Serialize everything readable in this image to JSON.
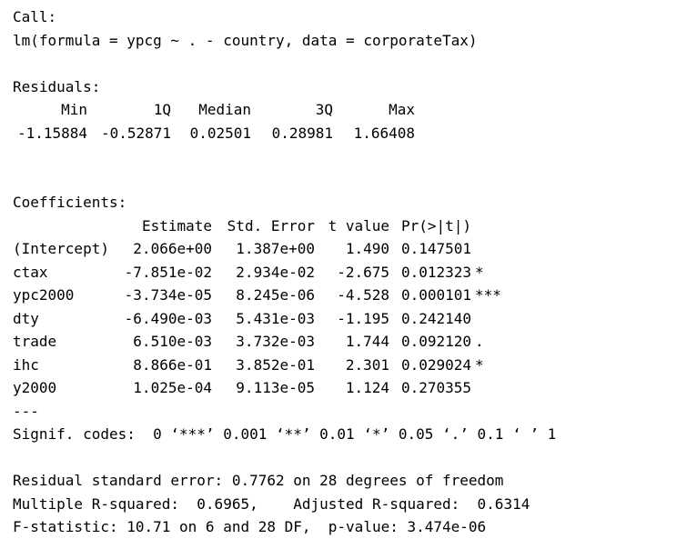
{
  "call": {
    "header": "Call:",
    "formula": "lm(formula = ypcg ~ . - country, data = corporateTax)"
  },
  "residuals": {
    "header": "Residuals:",
    "labels": [
      "Min",
      "1Q",
      "Median",
      "3Q",
      "Max"
    ],
    "values": [
      "-1.15884",
      "-0.52871",
      "0.02501",
      "0.28981",
      "1.66408"
    ]
  },
  "coefficients": {
    "header": "Coefficients:",
    "columns": [
      "Estimate",
      "Std. Error",
      "t value",
      "Pr(>|t|)"
    ],
    "rows": [
      {
        "name": "(Intercept)",
        "estimate": "2.066e+00",
        "std_error": "1.387e+00",
        "t_value": "1.490",
        "p_value": "0.147501",
        "signif": ""
      },
      {
        "name": "ctax",
        "estimate": "-7.851e-02",
        "std_error": "2.934e-02",
        "t_value": "-2.675",
        "p_value": "0.012323",
        "signif": "*"
      },
      {
        "name": "ypc2000",
        "estimate": "-3.734e-05",
        "std_error": "8.245e-06",
        "t_value": "-4.528",
        "p_value": "0.000101",
        "signif": "***"
      },
      {
        "name": "dty",
        "estimate": "-6.490e-03",
        "std_error": "5.431e-03",
        "t_value": "-1.195",
        "p_value": "0.242140",
        "signif": ""
      },
      {
        "name": "trade",
        "estimate": "6.510e-03",
        "std_error": "3.732e-03",
        "t_value": "1.744",
        "p_value": "0.092120",
        "signif": "."
      },
      {
        "name": "ihc",
        "estimate": "8.866e-01",
        "std_error": "3.852e-01",
        "t_value": "2.301",
        "p_value": "0.029024",
        "signif": "*"
      },
      {
        "name": "y2000",
        "estimate": "1.025e-04",
        "std_error": "9.113e-05",
        "t_value": "1.124",
        "p_value": "0.270355",
        "signif": ""
      }
    ],
    "separator": "---",
    "signif_codes": "Signif. codes:  0 ‘***’ 0.001 ‘**’ 0.01 ‘*’ 0.05 ‘.’ 0.1 ‘ ’ 1"
  },
  "summary": {
    "rse": "Residual standard error: 0.7762 on 28 degrees of freedom",
    "r_squared": "Multiple R-squared:  0.6965,\tAdjusted R-squared:  0.6314",
    "f_statistic": "F-statistic: 10.71 on 6 and 28 DF,  p-value: 3.474e-06"
  }
}
